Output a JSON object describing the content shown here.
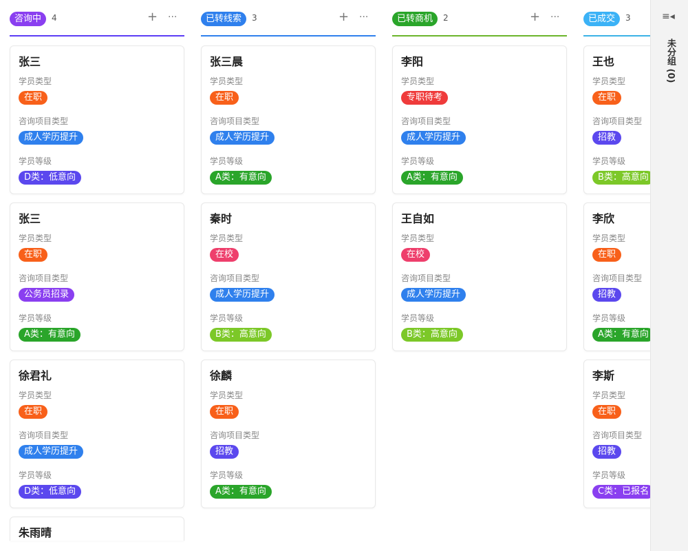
{
  "colors": {
    "在职": "#f8601a",
    "在校": "#ee3f6c",
    "专职待考": "#ef3b3b",
    "成人学历提升": "#2f80ed",
    "公务员招录": "#8a3ff0",
    "招教": "#5b48ee",
    "D类：低意向": "#5b48ee",
    "A类：有意向": "#2aa52a",
    "B类：高意向": "#7cc828",
    "C类：已报名": "#8a3ff0"
  },
  "labels": {
    "student_type": "学员类型",
    "project_type": "咨询项目类型",
    "level": "学员等级"
  },
  "columns": [
    {
      "title": "咨询中",
      "count": "4",
      "color": "#8a3ff0",
      "line": "#5b3cf5",
      "add_icon": "+",
      "more_icon": "···",
      "cards": [
        {
          "name": "张三",
          "student_type": "在职",
          "project_type": "成人学历提升",
          "level": "D类：低意向"
        },
        {
          "name": "张三",
          "student_type": "在职",
          "project_type": "公务员招录",
          "level": "A类：有意向"
        },
        {
          "name": "徐君礼",
          "student_type": "在职",
          "project_type": "成人学历提升",
          "level": "D类：低意向"
        },
        {
          "name": "朱雨晴"
        }
      ]
    },
    {
      "title": "已转线索",
      "count": "3",
      "color": "#2f80ed",
      "line": "#2f80ed",
      "add_icon": "+",
      "more_icon": "···",
      "cards": [
        {
          "name": "张三晨",
          "student_type": "在职",
          "project_type": "成人学历提升",
          "level": "A类：有意向"
        },
        {
          "name": "秦时",
          "student_type": "在校",
          "project_type": "成人学历提升",
          "level": "B类：高意向"
        },
        {
          "name": "徐麟",
          "student_type": "在职",
          "project_type": "招教",
          "level": "A类：有意向"
        }
      ]
    },
    {
      "title": "已转商机",
      "count": "2",
      "color": "#2aa52a",
      "line": "#6bb52a",
      "add_icon": "+",
      "more_icon": "···",
      "cards": [
        {
          "name": "李阳",
          "student_type": "专职待考",
          "project_type": "成人学历提升",
          "level": "A类：有意向"
        },
        {
          "name": "王自如",
          "student_type": "在校",
          "project_type": "成人学历提升",
          "level": "B类：高意向"
        }
      ]
    },
    {
      "title": "已成交",
      "count": "3",
      "color": "#3bb2f6",
      "line": "#3bb2e6",
      "cards": [
        {
          "name": "王也",
          "student_type": "在职",
          "project_type": "招教",
          "level": "B类：高意向"
        },
        {
          "name": "李欣",
          "student_type": "在职",
          "project_type": "招教",
          "level": "A类：有意向"
        },
        {
          "name": "李斯",
          "student_type": "在职",
          "project_type": "招教",
          "level": "C类：已报名"
        }
      ]
    }
  ],
  "side_panel": {
    "icon": "collapse-list-icon",
    "title": "未分组 (0)"
  }
}
